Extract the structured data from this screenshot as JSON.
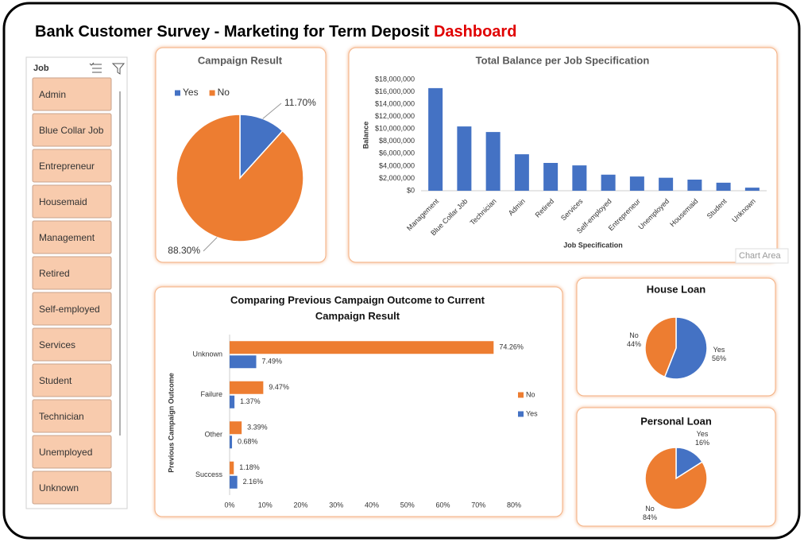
{
  "title": "Bank Customer Survey - Marketing for Term Deposit",
  "title_highlight": "Dashboard",
  "slicer": {
    "header": "Job",
    "items": [
      "Admin",
      "Blue Collar Job",
      "Entrepreneur",
      "Housemaid",
      "Management",
      "Retired",
      "Self-employed",
      "Services",
      "Student",
      "Technician",
      "Unemployed",
      "Unknown"
    ]
  },
  "tooltip": "Chart Area",
  "chart_data": [
    {
      "type": "pie",
      "title": "Campaign Result",
      "categories": [
        "Yes",
        "No"
      ],
      "values": [
        11.7,
        88.3
      ],
      "value_labels": [
        "11.70%",
        "88.30%"
      ],
      "colors": [
        "#4472c4",
        "#ed7d31"
      ],
      "legend": "top-left"
    },
    {
      "type": "bar",
      "title": "Total Balance per Job Specification",
      "xlabel": "Job Specification",
      "ylabel": "Balance",
      "categories": [
        "Management",
        "Blue Collar Job",
        "Technician",
        "Admin",
        "Retired",
        "Services",
        "Self-employed",
        "Entrepreneur",
        "Unemployed",
        "Housemaid",
        "Student",
        "Unknown"
      ],
      "values": [
        16600000,
        10400000,
        9500000,
        5900000,
        4500000,
        4100000,
        2600000,
        2300000,
        2100000,
        1800000,
        1300000,
        500000
      ],
      "color": "#4472c4",
      "ylim": [
        0,
        18000000
      ],
      "yticks": [
        {
          "value": 0,
          "label": "$0"
        },
        {
          "value": 2000000,
          "label": "$2,000,000"
        },
        {
          "value": 4000000,
          "label": "$4,000,000"
        },
        {
          "value": 6000000,
          "label": "$6,000,000"
        },
        {
          "value": 8000000,
          "label": "$8,000,000"
        },
        {
          "value": 10000000,
          "label": "$10,000,000"
        },
        {
          "value": 12000000,
          "label": "$12,000,000"
        },
        {
          "value": 14000000,
          "label": "$14,000,000"
        },
        {
          "value": 16000000,
          "label": "$16,000,000"
        },
        {
          "value": 18000000,
          "label": "$18,000,000"
        }
      ],
      "grid": false
    },
    {
      "type": "barh",
      "title": "Comparing Previous Campaign Outcome to Current Campaign Result",
      "ylabel": "Previous Campaign Outcome",
      "categories": [
        "Unknown",
        "Failure",
        "Other",
        "Success"
      ],
      "series": [
        {
          "name": "No",
          "color": "#ed7d31",
          "values": [
            74.26,
            9.47,
            3.39,
            1.18
          ],
          "value_labels": [
            "74.26%",
            "9.47%",
            "3.39%",
            "1.18%"
          ]
        },
        {
          "name": "Yes",
          "color": "#4472c4",
          "values": [
            7.49,
            1.37,
            0.68,
            2.16
          ],
          "value_labels": [
            "7.49%",
            "1.37%",
            "0.68%",
            "2.16%"
          ]
        }
      ],
      "xlim": [
        0,
        80
      ],
      "xticks": [
        {
          "value": 0,
          "label": "0%"
        },
        {
          "value": 10,
          "label": "10%"
        },
        {
          "value": 20,
          "label": "20%"
        },
        {
          "value": 30,
          "label": "30%"
        },
        {
          "value": 40,
          "label": "40%"
        },
        {
          "value": 50,
          "label": "50%"
        },
        {
          "value": 60,
          "label": "60%"
        },
        {
          "value": 70,
          "label": "70%"
        },
        {
          "value": 80,
          "label": "80%"
        }
      ],
      "legend": "right"
    },
    {
      "type": "pie",
      "title": "House Loan",
      "categories": [
        "Yes",
        "No"
      ],
      "values": [
        56,
        44
      ],
      "value_labels": [
        "56%",
        "44%"
      ],
      "colors": [
        "#4472c4",
        "#ed7d31"
      ]
    },
    {
      "type": "pie",
      "title": "Personal Loan",
      "categories": [
        "Yes",
        "No"
      ],
      "values": [
        16,
        84
      ],
      "value_labels": [
        "16%",
        "84%"
      ],
      "colors": [
        "#4472c4",
        "#ed7d31"
      ]
    }
  ]
}
